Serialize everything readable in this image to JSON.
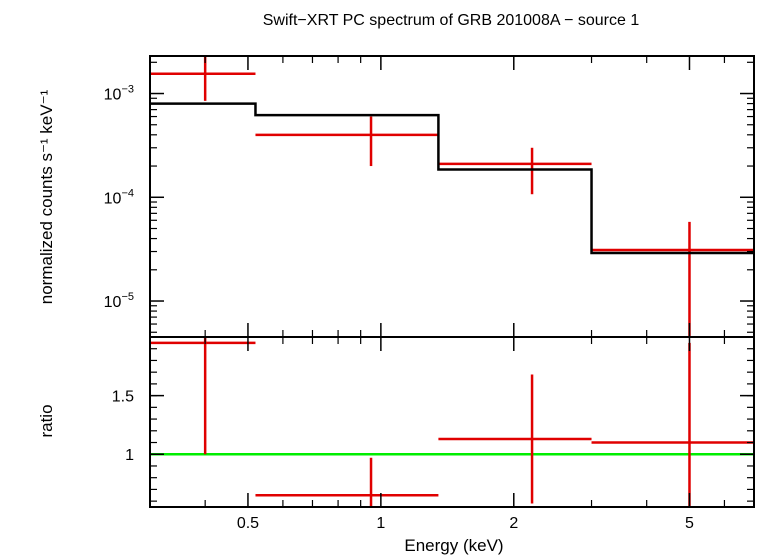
{
  "chart_data": {
    "type": "scatter",
    "title": "Swift−XRT PC spectrum of GRB 201008A − source 1",
    "xlabel": "Energy (keV)",
    "xscale": "log",
    "xlim": [
      0.3,
      7.0
    ],
    "x_ticks": [
      {
        "value": 0.5,
        "label": "0.5"
      },
      {
        "value": 1,
        "label": "1"
      },
      {
        "value": 2,
        "label": "2"
      },
      {
        "value": 5,
        "label": "5"
      }
    ],
    "panels": [
      {
        "name": "spectrum",
        "ylabel": "normalized counts s⁻¹ keV⁻¹",
        "yscale": "log",
        "ylim": [
          4.5e-06,
          0.0023
        ],
        "y_ticks": [
          {
            "value": 0.001,
            "base": "10",
            "exp": "−3"
          },
          {
            "value": 0.0001,
            "base": "10",
            "exp": "−4"
          },
          {
            "value": 1e-05,
            "base": "10",
            "exp": "−5"
          }
        ],
        "series": [
          {
            "name": "data",
            "color": "#e00000",
            "points": [
              {
                "x": 0.4,
                "xlo": 0.3,
                "xhi": 0.52,
                "y": 0.00155,
                "ylo": 0.00085,
                "yhi": 0.0023
              },
              {
                "x": 0.95,
                "xlo": 0.52,
                "xhi": 1.35,
                "y": 0.0004,
                "ylo": 0.0002,
                "yhi": 0.0006
              },
              {
                "x": 2.2,
                "xlo": 1.35,
                "xhi": 3.0,
                "y": 0.00021,
                "ylo": 0.000107,
                "yhi": 0.0003
              },
              {
                "x": 5.0,
                "xlo": 3.0,
                "xhi": 7.0,
                "y": 3.1e-05,
                "ylo": 4.5e-06,
                "yhi": 5.8e-05
              }
            ]
          },
          {
            "name": "model",
            "color": "#000000",
            "step": [
              {
                "xlo": 0.3,
                "xhi": 0.52,
                "y": 0.0008
              },
              {
                "xlo": 0.52,
                "xhi": 1.35,
                "y": 0.00062
              },
              {
                "xlo": 1.35,
                "xhi": 3.0,
                "y": 0.000185
              },
              {
                "xlo": 3.0,
                "xhi": 7.0,
                "y": 2.9e-05
              }
            ]
          }
        ]
      },
      {
        "name": "ratio",
        "ylabel": "ratio",
        "yscale": "linear",
        "ylim": [
          0.55,
          2.0
        ],
        "y_ticks": [
          {
            "value": 1,
            "label": "1"
          },
          {
            "value": 1.5,
            "label": "1.5"
          }
        ],
        "reference_line": {
          "y": 1.0,
          "color": "#00ee00"
        },
        "series": [
          {
            "name": "ratio",
            "color": "#e00000",
            "points": [
              {
                "x": 0.4,
                "xlo": 0.3,
                "xhi": 0.52,
                "y": 1.95,
                "ylo": 1.0,
                "yhi": 2.0
              },
              {
                "x": 0.95,
                "xlo": 0.52,
                "xhi": 1.35,
                "y": 0.65,
                "ylo": 0.55,
                "yhi": 0.97
              },
              {
                "x": 2.2,
                "xlo": 1.35,
                "xhi": 3.0,
                "y": 1.13,
                "ylo": 0.58,
                "yhi": 1.68
              },
              {
                "x": 5.0,
                "xlo": 3.0,
                "xhi": 7.0,
                "y": 1.1,
                "ylo": 0.55,
                "yhi": 1.95
              }
            ]
          }
        ]
      }
    ]
  }
}
